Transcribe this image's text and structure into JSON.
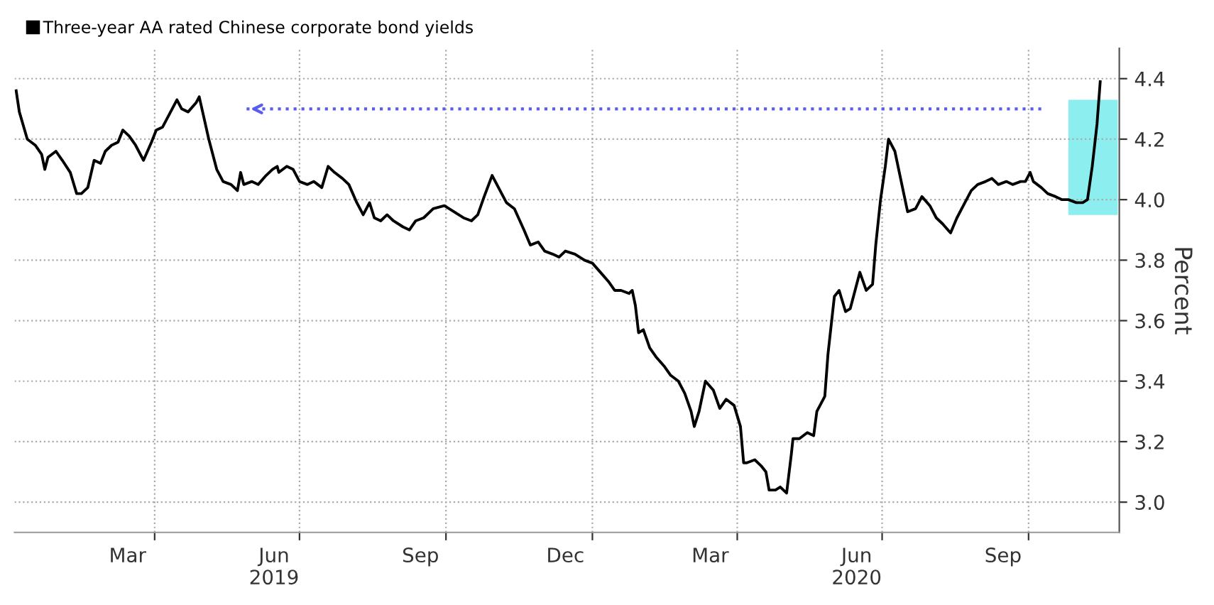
{
  "chart_data": {
    "type": "line",
    "x": [
      "2019-01-04",
      "2019-01-06",
      "2019-01-11",
      "2019-01-16",
      "2019-01-20",
      "2019-01-22",
      "2019-01-24",
      "2019-01-29",
      "2019-02-02",
      "2019-02-07",
      "2019-02-11",
      "2019-02-14",
      "2019-02-18",
      "2019-02-22",
      "2019-02-26",
      "2019-03-01",
      "2019-03-05",
      "2019-03-09",
      "2019-03-12",
      "2019-03-16",
      "2019-03-20",
      "2019-03-25",
      "2019-03-30",
      "2019-04-02",
      "2019-04-06",
      "2019-04-11",
      "2019-04-15",
      "2019-04-18",
      "2019-04-22",
      "2019-04-27",
      "2019-04-29",
      "2019-05-02",
      "2019-05-05",
      "2019-05-10",
      "2019-05-14",
      "2019-05-19",
      "2019-05-23",
      "2019-05-25",
      "2019-05-27",
      "2019-06-01",
      "2019-06-05",
      "2019-06-10",
      "2019-06-14",
      "2019-06-17",
      "2019-06-18",
      "2019-06-23",
      "2019-06-27",
      "2019-07-01",
      "2019-07-06",
      "2019-07-10",
      "2019-07-15",
      "2019-07-19",
      "2019-07-23",
      "2019-07-28",
      "2019-08-01",
      "2019-08-06",
      "2019-08-10",
      "2019-08-14",
      "2019-08-17",
      "2019-08-21",
      "2019-08-25",
      "2019-08-29",
      "2019-09-04",
      "2019-09-08",
      "2019-09-12",
      "2019-09-17",
      "2019-09-23",
      "2019-09-30",
      "2019-10-06",
      "2019-10-12",
      "2019-10-17",
      "2019-10-21",
      "2019-10-25",
      "2019-10-30",
      "2019-11-03",
      "2019-11-08",
      "2019-11-13",
      "2019-11-19",
      "2019-11-23",
      "2019-11-28",
      "2019-12-02",
      "2019-12-07",
      "2019-12-11",
      "2019-12-15",
      "2019-12-21",
      "2019-12-27",
      "2020-01-01",
      "2020-01-06",
      "2020-01-11",
      "2020-01-15",
      "2020-01-19",
      "2020-01-24",
      "2020-01-26",
      "2020-01-28",
      "2020-01-30",
      "2020-02-02",
      "2020-02-06",
      "2020-02-10",
      "2020-02-15",
      "2020-02-19",
      "2020-02-24",
      "2020-02-28",
      "2020-03-03",
      "2020-03-05",
      "2020-03-08",
      "2020-03-12",
      "2020-03-17",
      "2020-03-21",
      "2020-03-25",
      "2020-03-30",
      "2020-04-03",
      "2020-04-05",
      "2020-04-07",
      "2020-04-12",
      "2020-04-16",
      "2020-04-19",
      "2020-04-21",
      "2020-04-25",
      "2020-04-28",
      "2020-05-02",
      "2020-05-05",
      "2020-05-06",
      "2020-05-10",
      "2020-05-15",
      "2020-05-19",
      "2020-05-21",
      "2020-05-26",
      "2020-05-28",
      "2020-06-01",
      "2020-06-04",
      "2020-06-08",
      "2020-06-11",
      "2020-06-14",
      "2020-06-17",
      "2020-06-21",
      "2020-06-25",
      "2020-06-27",
      "2020-06-30",
      "2020-07-03",
      "2020-07-05",
      "2020-07-09",
      "2020-07-13",
      "2020-07-17",
      "2020-07-22",
      "2020-07-26",
      "2020-07-31",
      "2020-08-04",
      "2020-08-08",
      "2020-08-13",
      "2020-08-17",
      "2020-08-22",
      "2020-08-26",
      "2020-08-30",
      "2020-09-04",
      "2020-09-08",
      "2020-09-12",
      "2020-09-17",
      "2020-09-21",
      "2020-09-26",
      "2020-09-29",
      "2020-10-02",
      "2020-10-04",
      "2020-10-09",
      "2020-10-13",
      "2020-10-18",
      "2020-10-22",
      "2020-10-26",
      "2020-10-31",
      "2020-11-04",
      "2020-11-07",
      "2020-11-10",
      "2020-11-13",
      "2020-11-15"
    ],
    "series": [
      {
        "name": "Three-year AA rated Chinese corporate bond yields",
        "color": "#000000",
        "values": [
          4.36,
          4.29,
          4.2,
          4.18,
          4.15,
          4.1,
          4.14,
          4.16,
          4.13,
          4.09,
          4.02,
          4.02,
          4.04,
          4.13,
          4.12,
          4.16,
          4.18,
          4.19,
          4.23,
          4.21,
          4.18,
          4.13,
          4.19,
          4.23,
          4.24,
          4.29,
          4.33,
          4.3,
          4.29,
          4.32,
          4.34,
          4.27,
          4.2,
          4.1,
          4.06,
          4.05,
          4.03,
          4.09,
          4.05,
          4.06,
          4.05,
          4.08,
          4.1,
          4.11,
          4.09,
          4.11,
          4.1,
          4.06,
          4.05,
          4.06,
          4.04,
          4.11,
          4.09,
          4.07,
          4.05,
          3.99,
          3.95,
          3.99,
          3.94,
          3.93,
          3.95,
          3.93,
          3.91,
          3.9,
          3.93,
          3.94,
          3.97,
          3.98,
          3.96,
          3.94,
          3.93,
          3.95,
          4.01,
          4.08,
          4.04,
          3.99,
          3.97,
          3.9,
          3.85,
          3.86,
          3.83,
          3.82,
          3.81,
          3.83,
          3.82,
          3.8,
          3.79,
          3.76,
          3.73,
          3.7,
          3.7,
          3.69,
          3.7,
          3.65,
          3.56,
          3.57,
          3.51,
          3.48,
          3.45,
          3.42,
          3.4,
          3.36,
          3.3,
          3.25,
          3.3,
          3.4,
          3.37,
          3.31,
          3.34,
          3.32,
          3.25,
          3.13,
          3.13,
          3.14,
          3.12,
          3.1,
          3.04,
          3.04,
          3.05,
          3.03,
          3.16,
          3.21,
          3.21,
          3.23,
          3.22,
          3.3,
          3.35,
          3.49,
          3.68,
          3.7,
          3.63,
          3.64,
          3.7,
          3.76,
          3.7,
          3.72,
          3.85,
          4.0,
          4.11,
          4.2,
          4.16,
          4.06,
          3.96,
          3.97,
          4.01,
          3.98,
          3.94,
          3.92,
          3.89,
          3.94,
          3.99,
          4.03,
          4.05,
          4.06,
          4.07,
          4.05,
          4.06,
          4.05,
          4.06,
          4.06,
          4.09,
          4.06,
          4.04,
          4.02,
          4.01,
          4.0,
          4.0,
          3.99,
          3.99,
          4.0,
          4.11,
          4.25,
          4.39
        ]
      }
    ],
    "ylabel": "Percent",
    "xlim": [
      "2019-01-03",
      "2020-11-27"
    ],
    "xticks": [
      {
        "value": "2019-03-15",
        "label": "Mar"
      },
      {
        "value": "2019-04-01",
        "label": null
      },
      {
        "value": "2019-06-15",
        "label": "Jun\n2019"
      },
      {
        "value": "2019-07-01",
        "label": null
      },
      {
        "value": "2019-09-15",
        "label": "Sep"
      },
      {
        "value": "2019-10-01",
        "label": null
      },
      {
        "value": "2019-12-15",
        "label": "Dec"
      },
      {
        "value": "2020-01-01",
        "label": null
      },
      {
        "value": "2020-03-15",
        "label": "Mar"
      },
      {
        "value": "2020-04-01",
        "label": null
      },
      {
        "value": "2020-06-15",
        "label": "Jun\n2020"
      },
      {
        "value": "2020-07-01",
        "label": null
      },
      {
        "value": "2020-09-15",
        "label": "Sep"
      },
      {
        "value": "2020-10-01",
        "label": null
      }
    ],
    "ylim": [
      2.9,
      4.5
    ],
    "yticks": [
      {
        "value": 3.0,
        "label": "3.0"
      },
      {
        "value": 3.2,
        "label": "3.2"
      },
      {
        "value": 3.4,
        "label": "3.4"
      },
      {
        "value": 3.6,
        "label": "3.6"
      },
      {
        "value": 3.8,
        "label": "3.8"
      },
      {
        "value": 4.0,
        "label": "4.0"
      },
      {
        "value": 4.2,
        "label": "4.2"
      },
      {
        "value": 4.4,
        "label": "4.4"
      }
    ],
    "ref_lines": [
      {
        "axis": "y",
        "value": 4.3,
        "color": "#5a5cf0",
        "line_style": "dotted"
      }
    ],
    "bands": [
      {
        "axis": "x",
        "from": "2020-10-26",
        "to": "2020-11-26",
        "color": "#7fecec"
      }
    ],
    "grid": true,
    "legend": "top left",
    "line_style": "solid",
    "marker": "none"
  }
}
